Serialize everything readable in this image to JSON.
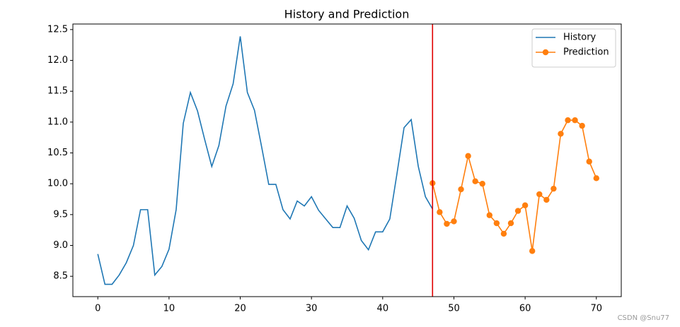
{
  "chart_data": {
    "type": "line",
    "title": "History and Prediction",
    "series": [
      {
        "name": "History",
        "color": "#1f77b4",
        "marker": false,
        "x": [
          0,
          1,
          2,
          3,
          4,
          5,
          6,
          7,
          8,
          9,
          10,
          11,
          12,
          13,
          14,
          15,
          16,
          17,
          18,
          19,
          20,
          21,
          22,
          23,
          24,
          25,
          26,
          27,
          28,
          29,
          30,
          31,
          32,
          33,
          34,
          35,
          36,
          37,
          38,
          39,
          40,
          41,
          42,
          43,
          44,
          45,
          46,
          47
        ],
        "values": [
          8.86,
          8.37,
          8.37,
          8.52,
          8.72,
          9.0,
          9.58,
          9.58,
          8.52,
          8.66,
          8.94,
          9.58,
          10.98,
          11.48,
          11.18,
          10.72,
          10.28,
          10.62,
          11.26,
          11.62,
          12.39,
          11.48,
          11.19,
          10.6,
          9.99,
          9.99,
          9.58,
          9.43,
          9.72,
          9.64,
          9.79,
          9.57,
          9.43,
          9.29,
          9.29,
          9.64,
          9.44,
          9.08,
          8.93,
          9.22,
          9.22,
          9.43,
          10.16,
          10.91,
          11.04,
          10.28,
          9.79,
          9.59
        ]
      },
      {
        "name": "Prediction",
        "color": "#ff7f0e",
        "marker": true,
        "x": [
          47,
          48,
          49,
          50,
          51,
          52,
          53,
          54,
          55,
          56,
          57,
          58,
          59,
          60,
          61,
          62,
          63,
          64,
          65,
          66,
          67,
          68,
          69,
          70
        ],
        "values": [
          10.01,
          9.54,
          9.35,
          9.39,
          9.91,
          10.45,
          10.04,
          10.0,
          9.49,
          9.36,
          9.19,
          9.36,
          9.56,
          9.65,
          8.91,
          9.83,
          9.74,
          9.92,
          10.81,
          11.03,
          11.03,
          10.94,
          10.36,
          10.09
        ]
      }
    ],
    "vline": {
      "x": 47,
      "color": "#e00000"
    },
    "xlim": [
      -3.5,
      73.5
    ],
    "ylim": [
      8.17,
      12.59
    ],
    "xticks": [
      0,
      10,
      20,
      30,
      40,
      50,
      60,
      70
    ],
    "yticks": [
      8.5,
      {
        "value": 9.0,
        "label": "9.0"
      },
      9.5,
      {
        "value": 10.0,
        "label": "10.0"
      },
      10.5,
      {
        "value": 11.0,
        "label": "11.0"
      },
      11.5,
      {
        "value": 12.0,
        "label": "12.0"
      },
      12.5
    ],
    "legend": "upper right",
    "watermark": "CSDN @Snu77"
  }
}
